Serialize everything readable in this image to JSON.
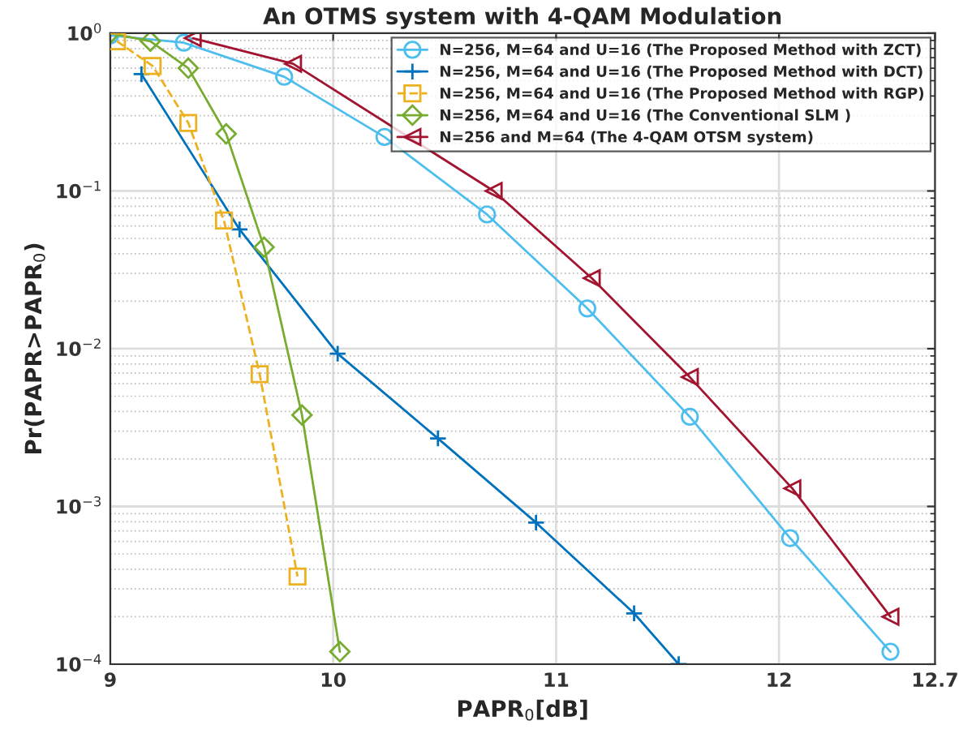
{
  "chart_data": {
    "type": "line",
    "title": "An OTMS system with 4-QAM Modulation",
    "xlabel": "PAPR$_{0}$[dB]",
    "ylabel": "Pr(PAPR>PAPR$_{0}$)",
    "log": "y",
    "grid": true,
    "legend": "top right",
    "xlim": [
      9,
      12.7
    ],
    "xticks": [
      9,
      10,
      11,
      12,
      12.7
    ],
    "ylim": [
      0.0001,
      1
    ],
    "yticks": [
      {
        "value": 0.0001,
        "label": "10$^{−4}$"
      },
      {
        "value": 0.001,
        "label": "10$^{−3}$"
      },
      {
        "value": 0.01,
        "label": "10$^{−2}$"
      },
      {
        "value": 0.1,
        "label": "10$^{−1}$"
      },
      {
        "value": 1,
        "label": "10$^{0}$"
      }
    ],
    "series": [
      {
        "name": "N=256, M=64 and U=16 (The Proposed Method with ZCT)",
        "color": "#4dbeee",
        "marker": "circle",
        "line_style": "solid",
        "x": [
          9.0,
          9.33,
          9.78,
          10.23,
          10.69,
          11.14,
          11.6,
          12.05,
          12.5
        ],
        "values": [
          0.97,
          0.87,
          0.53,
          0.22,
          0.071,
          0.018,
          0.0037,
          0.00063,
          0.00012
        ]
      },
      {
        "name": "N=256, M=64 and U=16 (The Proposed Method with DCT)",
        "color": "#0072bd",
        "marker": "cross",
        "line_style": "solid",
        "x": [
          9.14,
          9.58,
          10.02,
          10.47,
          10.91,
          11.35,
          11.55
        ],
        "values": [
          0.55,
          0.057,
          0.0093,
          0.0027,
          0.00079,
          0.00021,
          0.0001
        ]
      },
      {
        "name": "N=256, M=64 and U=16 (The Proposed Method with RGP)",
        "color": "#edb120",
        "marker": "square",
        "line_style": "dashed",
        "x": [
          9.03,
          9.19,
          9.35,
          9.51,
          9.67,
          9.84
        ],
        "values": [
          0.89,
          0.62,
          0.27,
          0.065,
          0.0069,
          0.00036
        ]
      },
      {
        "name": "N=256, M=64 and U=16 (The Conventional SLM )",
        "color": "#77ac30",
        "marker": "diamond",
        "line_style": "solid",
        "x": [
          9.0,
          9.18,
          9.35,
          9.52,
          9.69,
          9.86,
          10.03
        ],
        "values": [
          1.0,
          0.89,
          0.6,
          0.23,
          0.044,
          0.0038,
          0.00012
        ]
      },
      {
        "name": "N=256 and M=64 (The 4-QAM OTSM system)",
        "color": "#a2142f",
        "marker": "triangle",
        "line_style": "solid",
        "x": [
          9.37,
          9.82,
          10.72,
          11.16,
          11.6,
          12.06,
          12.5
        ],
        "values": [
          0.93,
          0.64,
          0.1,
          0.028,
          0.0066,
          0.0013,
          0.0002
        ]
      }
    ]
  }
}
